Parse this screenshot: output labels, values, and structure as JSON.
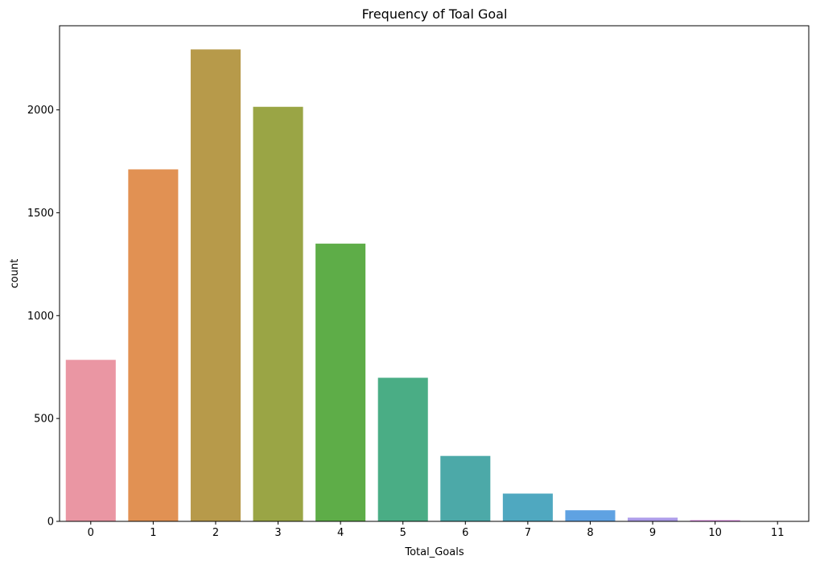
{
  "chart_data": {
    "type": "bar",
    "title": "Frequency of Toal Goal",
    "xlabel": "Total_Goals",
    "ylabel": "count",
    "categories": [
      "0",
      "1",
      "2",
      "3",
      "4",
      "5",
      "6",
      "7",
      "8",
      "9",
      "10",
      "11"
    ],
    "values": [
      785,
      1711,
      2294,
      2015,
      1350,
      698,
      318,
      135,
      54,
      18,
      6,
      2
    ],
    "colors": [
      "#ea96a3",
      "#e19153",
      "#b79a4a",
      "#9aa545",
      "#5ead48",
      "#4aad85",
      "#4ca9a8",
      "#4fa8c0",
      "#5fa2e2",
      "#ad9ce9",
      "#e28be8",
      "#e888c9"
    ],
    "yticks": [
      0,
      500,
      1000,
      1500,
      2000
    ],
    "ylim": [
      0,
      2409
    ],
    "grid": false,
    "legend": "none"
  }
}
